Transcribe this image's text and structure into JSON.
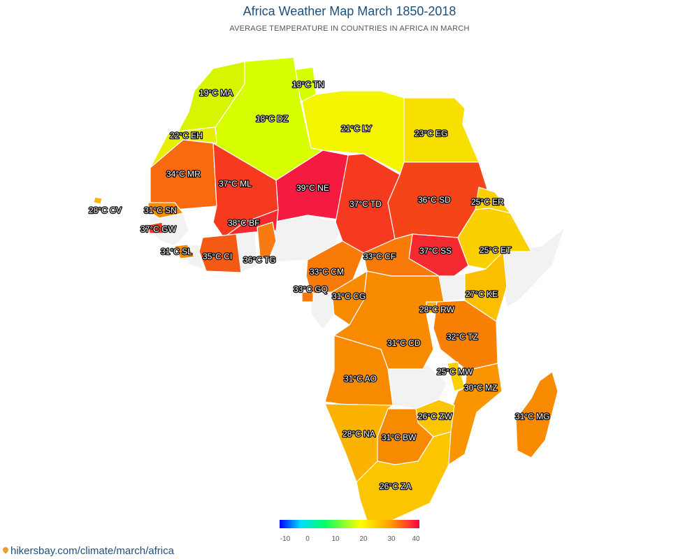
{
  "header": {
    "title": "Africa Weather Map March 1850-2018",
    "subtitle": "AVERAGE TEMPERATURE IN COUNTRIES IN AFRICA IN MARCH"
  },
  "colors": {
    "nodata": "#f2f2f2"
  },
  "countries": [
    {
      "code": "MA",
      "label": "19°C MA",
      "temp": 19,
      "color": "#d8f500"
    },
    {
      "code": "TN",
      "label": "18°C TN",
      "temp": 18,
      "color": "#d8ff00"
    },
    {
      "code": "DZ",
      "label": "18°C DZ",
      "temp": 18,
      "color": "#d8ff00"
    },
    {
      "code": "LY",
      "label": "21°C LY",
      "temp": 21,
      "color": "#f5f500"
    },
    {
      "code": "EG",
      "label": "23°C EG",
      "temp": 23,
      "color": "#f7e000"
    },
    {
      "code": "EH",
      "label": "22°C EH",
      "temp": 22,
      "color": "#e8ee00"
    },
    {
      "code": "MR",
      "label": "34°C MR",
      "temp": 34,
      "color": "#f76a10"
    },
    {
      "code": "ML",
      "label": "37°C ML",
      "temp": 37,
      "color": "#f53a20"
    },
    {
      "code": "NE",
      "label": "39°C NE",
      "temp": 39,
      "color": "#f51a40"
    },
    {
      "code": "TD",
      "label": "37°C TD",
      "temp": 37,
      "color": "#f53a20"
    },
    {
      "code": "SD",
      "label": "36°C SD",
      "temp": 36,
      "color": "#f54518"
    },
    {
      "code": "ER",
      "label": "25°C ER",
      "temp": 25,
      "color": "#fad000"
    },
    {
      "code": "CV",
      "label": "28°C CV",
      "temp": 28,
      "color": "#fbb200"
    },
    {
      "code": "SN",
      "label": "31°C SN",
      "temp": 31,
      "color": "#f88a00"
    },
    {
      "code": "GW",
      "label": "37°C GW",
      "temp": 37,
      "color": "#f53a20"
    },
    {
      "code": "BF",
      "label": "38°C BF",
      "temp": 38,
      "color": "#f52a30"
    },
    {
      "code": "SL",
      "label": "31°C SL",
      "temp": 31,
      "color": "#f88a00"
    },
    {
      "code": "CI",
      "label": "35°C CI",
      "temp": 35,
      "color": "#f55a15"
    },
    {
      "code": "TG",
      "label": "36°C TG",
      "temp": 36,
      "color": "#f87a10"
    },
    {
      "code": "SS",
      "label": "37°C SS",
      "temp": 37,
      "color": "#f52a30"
    },
    {
      "code": "ET",
      "label": "25°C ET",
      "temp": 25,
      "color": "#fad000"
    },
    {
      "code": "CF",
      "label": "33°C CF",
      "temp": 33,
      "color": "#f87a08"
    },
    {
      "code": "CM",
      "label": "33°C CM",
      "temp": 33,
      "color": "#f87a08"
    },
    {
      "code": "GQ",
      "label": "33°C GQ",
      "temp": 33,
      "color": "#f87a08"
    },
    {
      "code": "CG",
      "label": "31°C CG",
      "temp": 31,
      "color": "#f88a00"
    },
    {
      "code": "KE",
      "label": "27°C KE",
      "temp": 27,
      "color": "#fbbf00"
    },
    {
      "code": "RW",
      "label": "28°C RW",
      "temp": 28,
      "color": "#fbb200"
    },
    {
      "code": "CD",
      "label": "31°C CD",
      "temp": 31,
      "color": "#f88a00"
    },
    {
      "code": "TZ",
      "label": "32°C TZ",
      "temp": 32,
      "color": "#f88005"
    },
    {
      "code": "AO",
      "label": "31°C AO",
      "temp": 31,
      "color": "#f88a00"
    },
    {
      "code": "MW",
      "label": "25°C MW",
      "temp": 25,
      "color": "#fad000"
    },
    {
      "code": "MZ",
      "label": "30°C MZ",
      "temp": 30,
      "color": "#f99500"
    },
    {
      "code": "MG",
      "label": "31°C MG",
      "temp": 31,
      "color": "#f88a00"
    },
    {
      "code": "ZW",
      "label": "26°C ZW",
      "temp": 26,
      "color": "#fbc500"
    },
    {
      "code": "NA",
      "label": "28°C NA",
      "temp": 28,
      "color": "#fbb200"
    },
    {
      "code": "BW",
      "label": "31°C BW",
      "temp": 31,
      "color": "#f88a00"
    },
    {
      "code": "ZA",
      "label": "26°C ZA",
      "temp": 26,
      "color": "#fbc500"
    }
  ],
  "legend": {
    "ticks": [
      "-10",
      "0",
      "10",
      "20",
      "30",
      "40"
    ],
    "min": -10,
    "max": 40
  },
  "footer": {
    "source": "hikersbay.com/climate/march/africa"
  }
}
